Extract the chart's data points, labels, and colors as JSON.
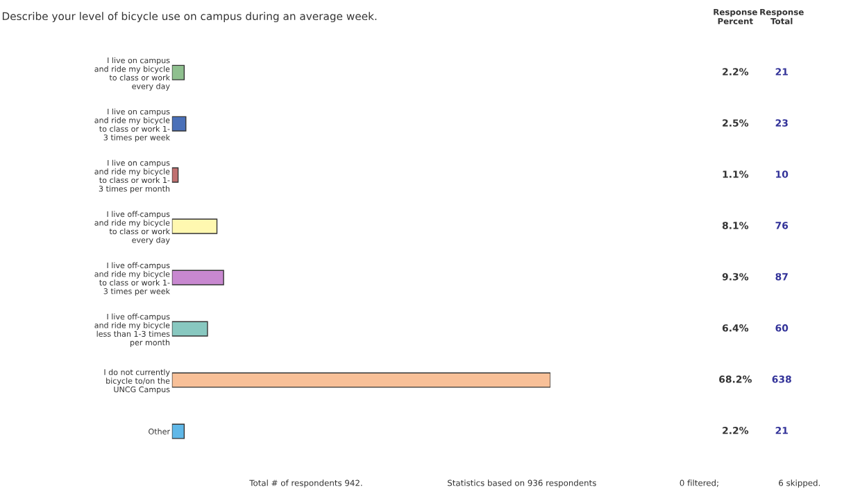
{
  "chart_data": {
    "type": "bar",
    "orientation": "horizontal",
    "title": "Describe your level of bicycle use on campus during an average week.",
    "categories": [
      "I live on campus\nand ride my bicycle\nto class or work\nevery day",
      "I live on campus\nand ride my bicycle\nto class or work 1-\n3 times per week",
      "I live on campus\nand ride my bicycle\nto class or work 1-\n3 times per month",
      "I live off-campus\nand ride my bicycle\nto class or work\nevery day",
      "I live off-campus\nand ride my bicycle\nto class or work 1-\n3 times per week",
      "I live off-campus\nand ride my bicycle\nless than 1-3 times\nper month",
      "I do not currently\nbicycle to/on the\nUNCG Campus",
      "Other"
    ],
    "values": [
      2.2,
      2.5,
      1.1,
      8.1,
      9.3,
      6.4,
      68.2,
      2.2
    ],
    "value_labels": [
      "2.2%",
      "2.5%",
      "1.1%",
      "8.1%",
      "9.3%",
      "6.4%",
      "68.2%",
      "2.2%"
    ],
    "colors": [
      "#8fc08f",
      "#4a70b8",
      "#c07070",
      "#fff8b0",
      "#c888d0",
      "#88c8c0",
      "#f8c098",
      "#60b8e8"
    ],
    "annotations": [
      "Response\nPercent",
      "Response\nTotal",
      "21",
      "23",
      "10",
      "76",
      "87",
      "60",
      "638",
      "21",
      "Total # of respondents 942.",
      "Statistics based on 936 respondents",
      "0 filtered;",
      "6 skipped."
    ],
    "grid": false,
    "legend": false
  }
}
